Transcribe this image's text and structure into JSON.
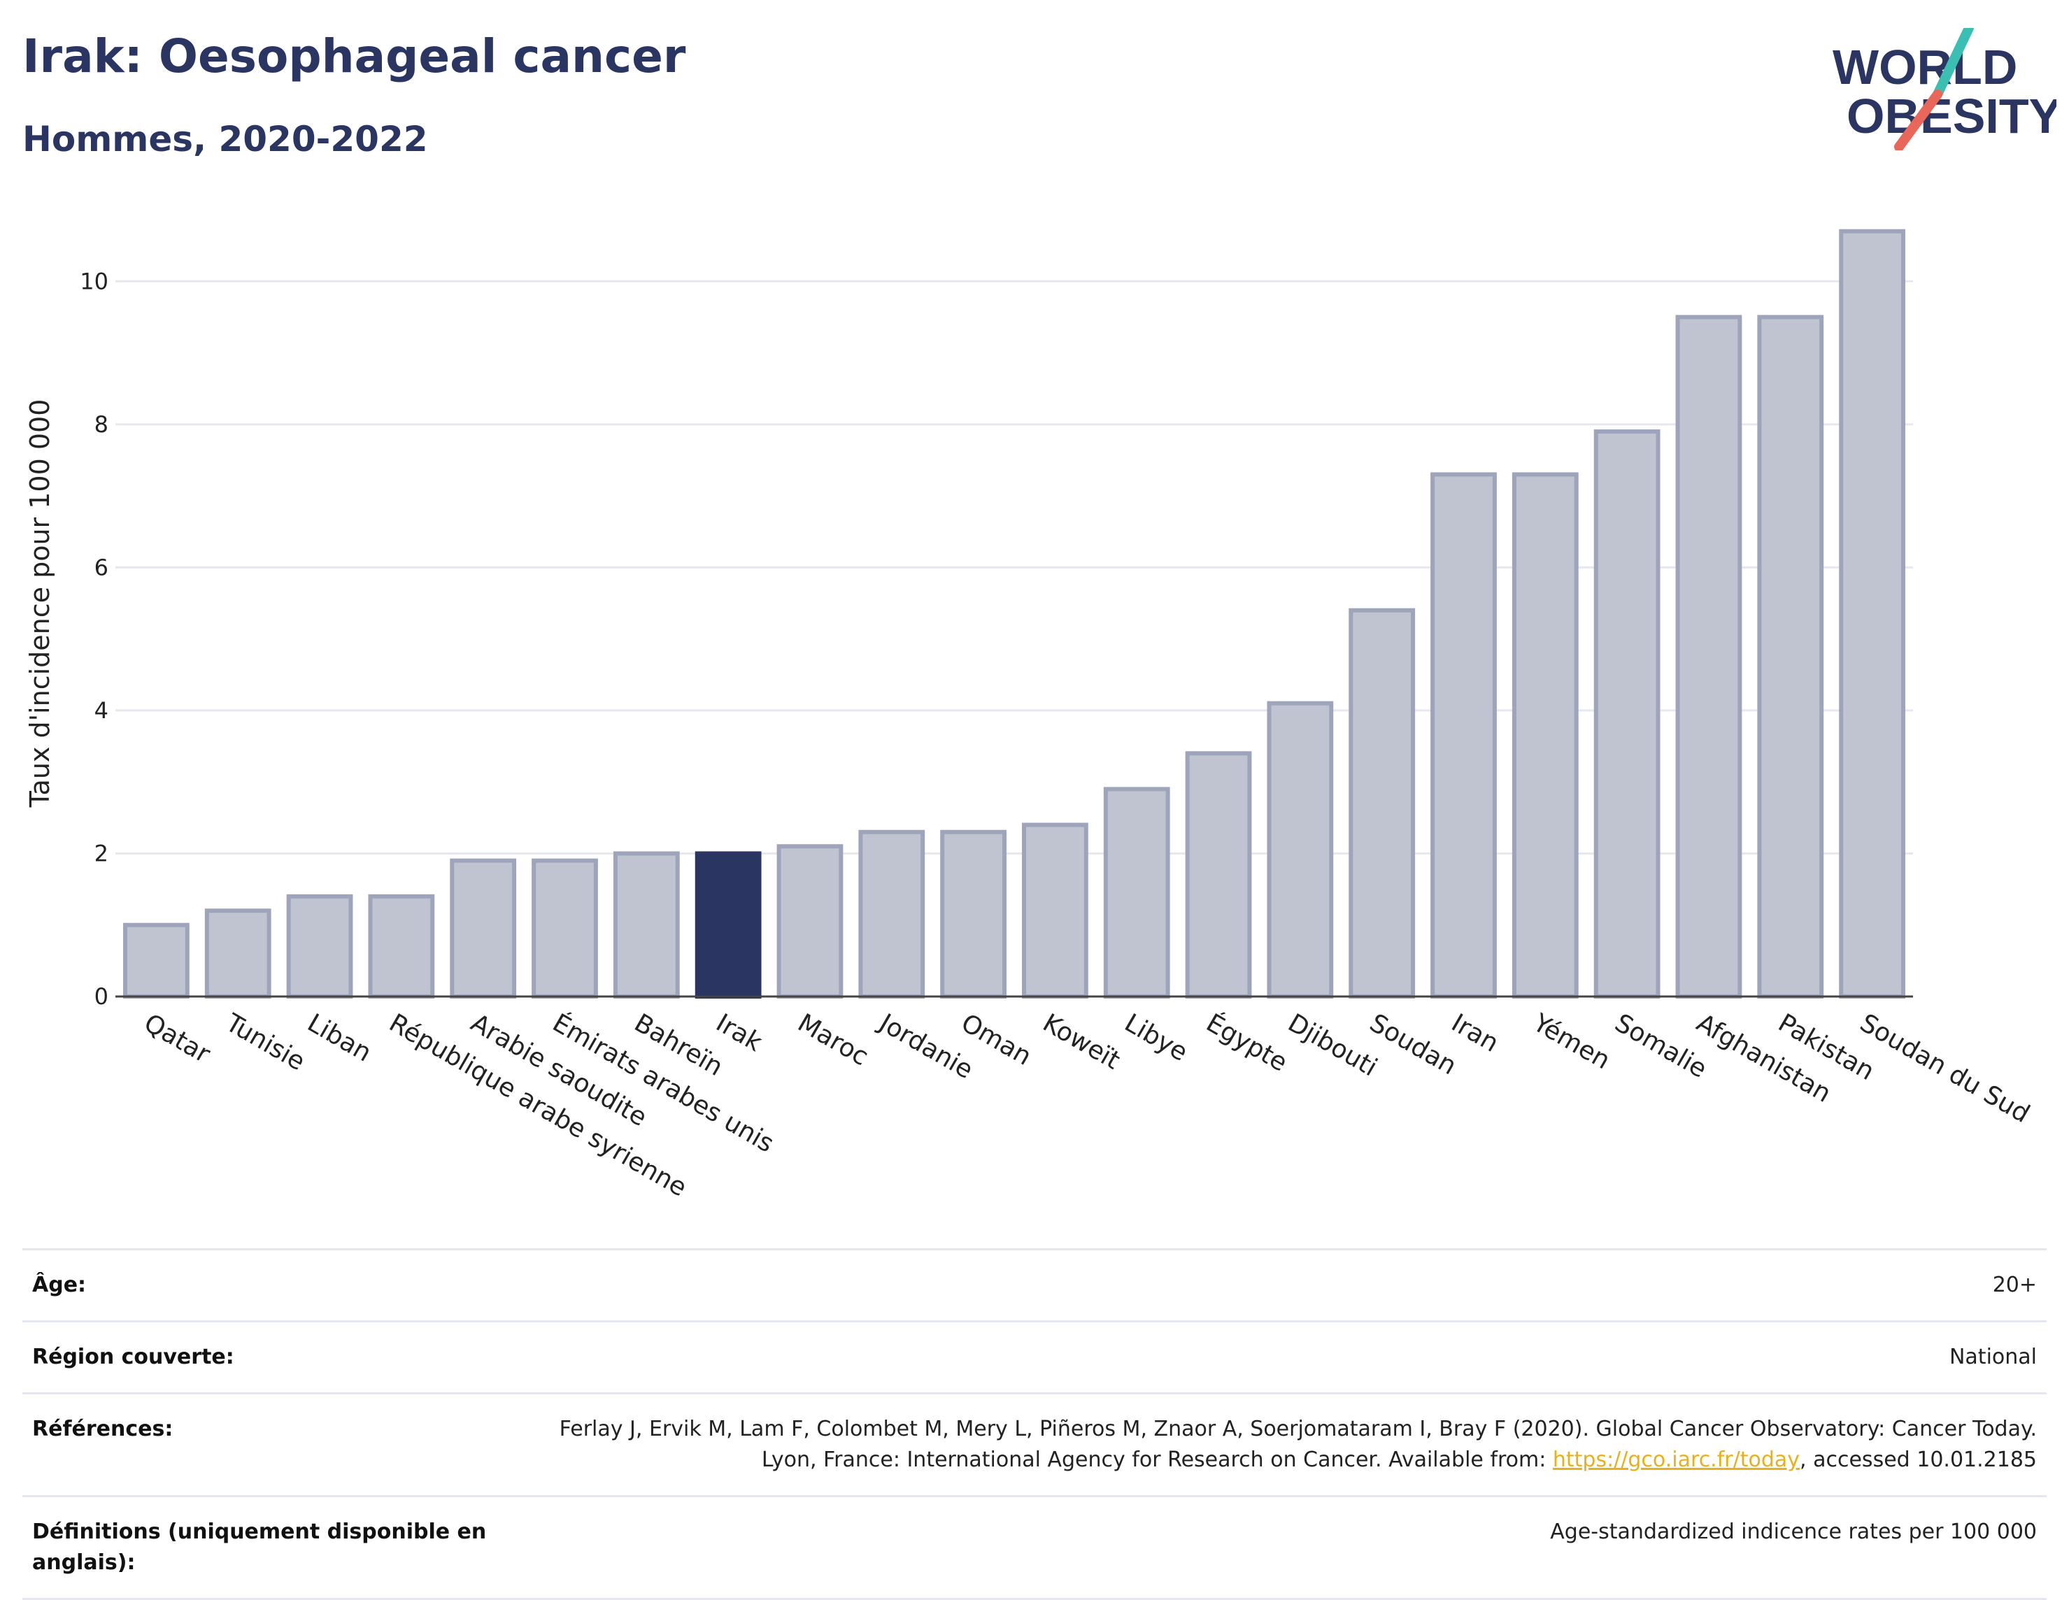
{
  "header": {
    "title": "Irak: Oesophageal cancer",
    "subtitle": "Hommes, 2020-2022"
  },
  "logo": {
    "line1": "WORLD",
    "line2": "OBESITY",
    "text_color": "#2b3561",
    "accent_teal": "#3bbfb3",
    "accent_red": "#e8665a"
  },
  "chart_data": {
    "type": "bar",
    "ylabel": "Taux d'incidence pour 100 000",
    "ylim": [
      0,
      11
    ],
    "yticks": [
      0,
      2,
      4,
      6,
      8,
      10
    ],
    "grid": true,
    "highlight": "Irak",
    "colors": {
      "bar": "#c0c4d1",
      "bar_edge": "#9ea4ba",
      "highlight": "#2b3561"
    },
    "categories": [
      "Qatar",
      "Tunisie",
      "Liban",
      "République arabe syrienne",
      "Arabie saoudite",
      "Émirats arabes unis",
      "Bahreïn",
      "Irak",
      "Maroc",
      "Jordanie",
      "Oman",
      "Koweït",
      "Libye",
      "Égypte",
      "Djibouti",
      "Soudan",
      "Iran",
      "Yémen",
      "Somalie",
      "Afghanistan",
      "Pakistan",
      "Soudan du Sud"
    ],
    "values": [
      1.0,
      1.2,
      1.4,
      1.4,
      1.9,
      1.9,
      2.0,
      2.0,
      2.1,
      2.3,
      2.3,
      2.4,
      2.9,
      3.4,
      4.1,
      5.4,
      7.3,
      7.3,
      7.9,
      9.5,
      9.5,
      10.7
    ]
  },
  "meta": {
    "age_label": "Âge:",
    "age_value": "20+",
    "region_label": "Région couverte:",
    "region_value": "National",
    "ref_label": "Références:",
    "ref_text_1": "Ferlay J, Ervik M, Lam F, Colombet M, Mery L, Piñeros M, Znaor A, Soerjomataram I, Bray F (2020). Global Cancer Observatory: Cancer Today. Lyon, France: International Agency for Research on Cancer. Available from: ",
    "ref_link": "https://gco.iarc.fr/today",
    "ref_text_2": ", accessed 10.01.2185",
    "def_label": "Définitions (uniquement disponible en anglais):",
    "def_value": "Age-standardized indicence rates per 100 000"
  }
}
